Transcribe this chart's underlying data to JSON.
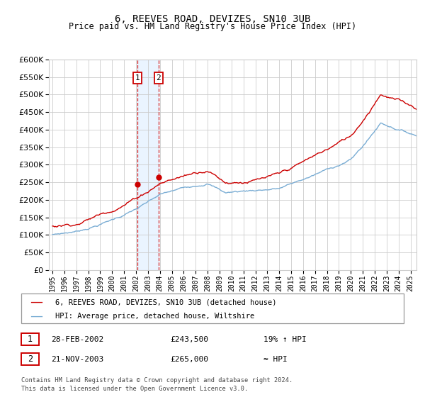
{
  "title": "6, REEVES ROAD, DEVIZES, SN10 3UB",
  "subtitle": "Price paid vs. HM Land Registry's House Price Index (HPI)",
  "ylim": [
    0,
    600000
  ],
  "ytick_values": [
    0,
    50000,
    100000,
    150000,
    200000,
    250000,
    300000,
    350000,
    400000,
    450000,
    500000,
    550000,
    600000
  ],
  "xlim_start": 1994.7,
  "xlim_end": 2025.5,
  "x_years": [
    1995,
    1996,
    1997,
    1998,
    1999,
    2000,
    2001,
    2002,
    2003,
    2004,
    2005,
    2006,
    2007,
    2008,
    2009,
    2010,
    2011,
    2012,
    2013,
    2014,
    2015,
    2016,
    2017,
    2018,
    2019,
    2020,
    2021,
    2022,
    2023,
    2024,
    2025
  ],
  "hpi_color": "#7aadd4",
  "price_color": "#cc0000",
  "marker_color": "#cc0000",
  "sale1_date": 2002.12,
  "sale2_date": 2003.88,
  "sale1_price": 243500,
  "sale2_price": 265000,
  "sale1_label": "1",
  "sale2_label": "2",
  "legend_house": "6, REEVES ROAD, DEVIZES, SN10 3UB (detached house)",
  "legend_hpi": "HPI: Average price, detached house, Wiltshire",
  "footnote_line1": "Contains HM Land Registry data © Crown copyright and database right 2024.",
  "footnote_line2": "This data is licensed under the Open Government Licence v3.0.",
  "bg_color": "#ffffff",
  "grid_color": "#cccccc",
  "shade_color": "#ddeeff"
}
